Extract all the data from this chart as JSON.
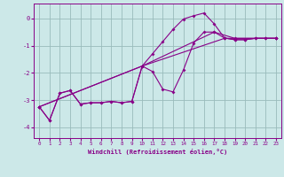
{
  "xlabel": "Windchill (Refroidissement éolien,°C)",
  "xlim": [
    -0.5,
    23.5
  ],
  "ylim": [
    -4.4,
    0.55
  ],
  "yticks": [
    0,
    -1,
    -2,
    -3,
    -4
  ],
  "xticks": [
    0,
    1,
    2,
    3,
    4,
    5,
    6,
    7,
    8,
    9,
    10,
    11,
    12,
    13,
    14,
    15,
    16,
    17,
    18,
    19,
    20,
    21,
    22,
    23
  ],
  "bg_color": "#cce8e8",
  "line_color": "#880088",
  "grid_color": "#99bbbb",
  "line1_x": [
    0,
    1,
    2,
    3,
    4,
    5,
    6,
    7,
    8,
    9,
    10,
    11,
    12,
    13,
    14,
    15,
    16,
    17,
    18,
    19,
    20,
    21,
    22,
    23
  ],
  "line1_y": [
    -3.25,
    -3.75,
    -2.75,
    -2.65,
    -3.15,
    -3.1,
    -3.1,
    -3.05,
    -3.1,
    -3.05,
    -1.75,
    -1.3,
    -0.85,
    -0.4,
    -0.02,
    0.1,
    0.2,
    -0.2,
    -0.72,
    -0.78,
    -0.78,
    -0.73,
    -0.73,
    -0.73
  ],
  "line2_x": [
    0,
    1,
    2,
    3,
    4,
    5,
    6,
    7,
    8,
    9,
    10,
    11,
    12,
    13,
    14,
    15,
    16,
    17,
    18,
    19,
    20,
    21,
    22,
    23
  ],
  "line2_y": [
    -3.25,
    -3.75,
    -2.75,
    -2.65,
    -3.15,
    -3.1,
    -3.1,
    -3.05,
    -3.1,
    -3.05,
    -1.75,
    -1.95,
    -2.6,
    -2.7,
    -1.9,
    -0.9,
    -0.5,
    -0.5,
    -0.72,
    -0.78,
    -0.78,
    -0.73,
    -0.73,
    -0.73
  ],
  "line3_x": [
    0,
    10,
    18,
    23
  ],
  "line3_y": [
    -3.25,
    -1.75,
    -0.73,
    -0.73
  ],
  "line4_x": [
    0,
    10,
    17,
    19,
    23
  ],
  "line4_y": [
    -3.25,
    -1.75,
    -0.5,
    -0.73,
    -0.73
  ]
}
